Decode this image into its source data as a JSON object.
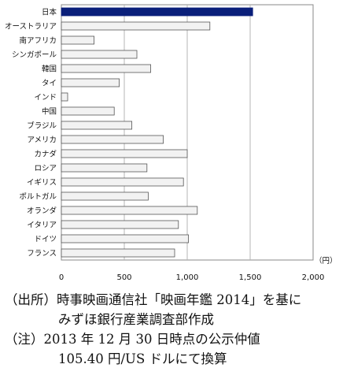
{
  "chart_data": {
    "type": "bar",
    "orientation": "horizontal",
    "categories": [
      "日本",
      "オーストラリア",
      "南アフリカ",
      "シンガポール",
      "韓国",
      "タイ",
      "インド",
      "中国",
      "ブラジル",
      "アメリカ",
      "カナダ",
      "ロシア",
      "イギリス",
      "ポルトガル",
      "オランダ",
      "イタリア",
      "ドイツ",
      "フランス"
    ],
    "values": [
      1520,
      1180,
      260,
      600,
      710,
      460,
      50,
      420,
      560,
      810,
      1000,
      680,
      970,
      690,
      1080,
      930,
      1010,
      900
    ],
    "xlim": [
      0,
      2000
    ],
    "xticks": [
      0,
      500,
      1000,
      1500,
      2000
    ],
    "xtick_labels": [
      "0",
      "500",
      "1,000",
      "1,500",
      "2,000"
    ],
    "unit": "（円）",
    "grid": "vertical",
    "colors": {
      "highlight": "#0a1f7a",
      "bar": "#f2f2f2",
      "bar_edge": "#555555"
    }
  },
  "notes": [
    "（出所）時事映画通信社「映画年鑑 2014」を基に",
    "みずほ銀行産業調査部作成",
    "（注）2013 年 12 月 30 日時点の公示仲値",
    "105.40 円/US ドルにて換算"
  ]
}
